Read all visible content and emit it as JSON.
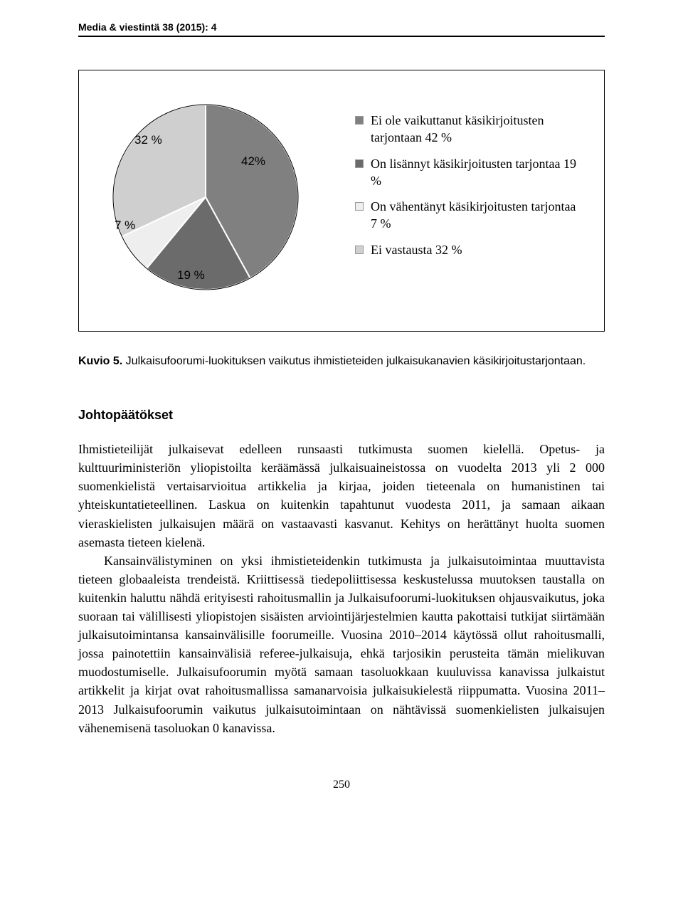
{
  "running_head": "Media & viestintä 38 (2015): 4",
  "chart": {
    "type": "pie",
    "center_label": "42%",
    "slice_labels": {
      "a": "32 %",
      "b": "7 %",
      "c": "19 %"
    },
    "slices": [
      {
        "value": 42,
        "color": "#808080"
      },
      {
        "value": 19,
        "color": "#6b6b6b"
      },
      {
        "value": 7,
        "color": "#eeeeee"
      },
      {
        "value": 32,
        "color": "#cfcfcf"
      }
    ],
    "border_color": "#ffffff",
    "edge_color": "#000000"
  },
  "legend": {
    "items": [
      {
        "swatch": "#808080",
        "text": "Ei ole vaikuttanut käsikirjoitusten tarjontaan 42 %"
      },
      {
        "swatch": "#6b6b6b",
        "text": "On lisännyt käsikirjoitusten tarjontaa 19 %"
      },
      {
        "swatch": "#eeeeee",
        "text": "On vähentänyt käsikirjoitusten tarjontaa 7 %"
      },
      {
        "swatch": "#cfcfcf",
        "text": "Ei vastausta 32 %"
      }
    ]
  },
  "caption": {
    "label": "Kuvio 5.",
    "text": " Julkaisufoorumi-luokituksen vaikutus ihmistieteiden julkaisukanavien käsikirjoitustarjontaan."
  },
  "section_heading": "Johtopäätökset",
  "paragraphs": [
    "Ihmistieteilijät julkaisevat edelleen runsaasti tutkimusta suomen kielellä. Opetus- ja kulttuuriministeriön yliopistoilta keräämässä julkaisuaineistossa on vuodelta 2013 yli 2 000 suomenkielistä vertaisarvioitua artikkelia ja kirjaa, joiden tieteenala on humanistinen tai yhteiskuntatieteellinen. Laskua on kuitenkin tapahtunut vuodesta 2011, ja samaan aikaan vieraskielisten julkaisujen määrä on vastaavasti kasvanut. Kehitys on herättänyt huolta suomen asemasta tieteen kielenä.",
    "Kansainvälistyminen on yksi ihmistieteidenkin tutkimusta ja julkaisutoimintaa muuttavista tieteen globaaleista trendeistä. Kriittisessä tiedepoliittisessa keskustelussa muutoksen taustalla on kuitenkin haluttu nähdä erityisesti rahoitusmallin ja Julkaisufoorumi-luokituksen ohjausvaikutus, joka suoraan tai välillisesti yliopistojen sisäisten arviointijärjestelmien kautta pakottaisi tutkijat siirtämään julkaisutoimintansa kansainvälisille foorumeille. Vuosina 2010–2014 käytössä ollut rahoitusmalli, jossa painotettiin kansainvälisiä referee-julkaisuja, ehkä tarjosikin perusteita tämän mielikuvan muodostumiselle. Julkaisufoorumin myötä samaan tasoluokkaan kuuluvissa kanavissa julkaistut artikkelit ja kirjat ovat rahoitusmallissa samanarvoisia julkaisukielestä riippumatta. Vuosina 2011–2013 Julkaisufoorumin vaikutus julkaisutoimintaan on nähtävissä suomenkielisten julkaisujen vähenemisenä tasoluokan 0 kanavissa."
  ],
  "page_number": "250"
}
